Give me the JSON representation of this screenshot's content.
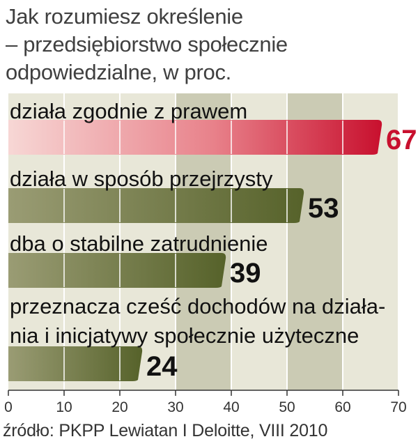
{
  "title_lines": [
    "Jak rozumiesz określenie",
    "– przedsiębiorstwo społecznie",
    "odpowiedzialne, w proc."
  ],
  "source": "źródło: PKPP Lewiatan I Deloitte, VIII 2010",
  "colors": {
    "highlight_bar": "#c8102e",
    "bar": "#5a6a2a",
    "highlight_value": "#c8102e",
    "value": "#111111",
    "background": "#e8e7d8",
    "shade": "#cbcbb4"
  },
  "chart_data": {
    "type": "bar",
    "orientation": "horizontal",
    "categories": [
      [
        "działa zgodnie z prawem"
      ],
      [
        "działa w sposób przejrzysty"
      ],
      [
        "dba o stabilne zatrudnienie"
      ],
      [
        "przeznacza cześć dochodów na działa-",
        "nia i inicjatywy społecznie użyteczne"
      ]
    ],
    "values": [
      67,
      53,
      39,
      24
    ],
    "value_labels": [
      "67",
      "53",
      "39",
      "24"
    ],
    "xlim": [
      0,
      70
    ],
    "ticks": [
      0,
      10,
      20,
      30,
      40,
      50,
      60,
      70
    ],
    "tick_labels": [
      "0",
      "10",
      "20",
      "30",
      "40",
      "50",
      "60",
      "70"
    ],
    "grid": true,
    "highlight_index": 0
  }
}
